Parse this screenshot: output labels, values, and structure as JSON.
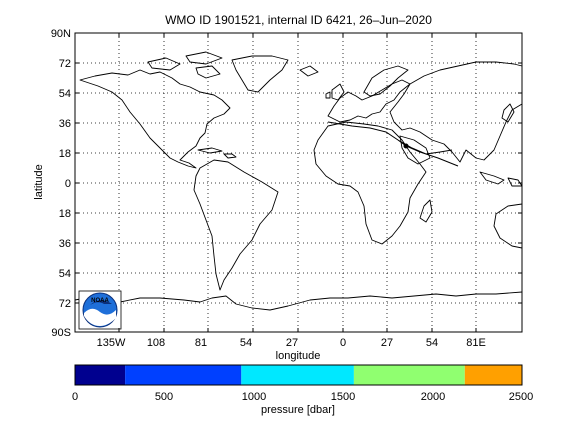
{
  "title": "WMO ID 1901521, internal ID 6421, 26–Jun–2020",
  "map": {
    "xlabel": "longitude",
    "ylabel": "latitude",
    "xticks": [
      "135W",
      "108",
      "81",
      "54",
      "27",
      "0",
      "27",
      "54",
      "81E"
    ],
    "yticks": [
      "90N",
      "72",
      "54",
      "36",
      "18",
      "0",
      "18",
      "36",
      "54",
      "72",
      "90S"
    ],
    "grid": true,
    "logo_text": "NOAA",
    "colors": {
      "coast": "#000000",
      "grid": "#000000",
      "track": "#000000"
    }
  },
  "colorbar": {
    "label": "pressure [dbar]",
    "ticks": [
      "0",
      "500",
      "1000",
      "1500",
      "2000",
      "2500"
    ],
    "segments": [
      {
        "from": 0,
        "to": 280,
        "color": "#00008f"
      },
      {
        "from": 280,
        "to": 930,
        "color": "#0040ff"
      },
      {
        "from": 930,
        "to": 1560,
        "color": "#00e8ff"
      },
      {
        "from": 1560,
        "to": 2180,
        "color": "#90ff70"
      },
      {
        "from": 2180,
        "to": 2500,
        "color": "#ffa000"
      }
    ]
  }
}
